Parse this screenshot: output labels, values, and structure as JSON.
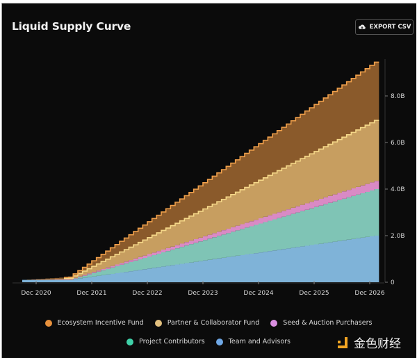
{
  "header": {
    "title": "Liquid Supply Curve",
    "export_label": "EXPORT CSV",
    "export_icon": "cloud-download-icon"
  },
  "watermark": {
    "text": "金色财经",
    "logo_color": "#f5a623"
  },
  "chart_data": {
    "type": "area",
    "stacked": true,
    "stepped": true,
    "title": "Liquid Supply Curve",
    "xlabel": "",
    "ylabel": "",
    "x_ticks": [
      "Dec 2020",
      "Dec 2021",
      "Dec 2022",
      "Dec 2023",
      "Dec 2024",
      "Dec 2025",
      "Dec 2026"
    ],
    "y_ticks": [
      "0",
      "2.0B",
      "4.0B",
      "6.0B",
      "8.0B"
    ],
    "y_tick_values": [
      0,
      2,
      4,
      6,
      8
    ],
    "ylim": [
      0,
      9.6
    ],
    "y_unit": "B",
    "y_axis_side": "right",
    "x_range": [
      "2020-09",
      "2027-01"
    ],
    "unlock_start": "2021-07",
    "legend_position": "bottom",
    "grid": false,
    "series": [
      {
        "name": "Team and Advisors",
        "color": "#7fb3d8",
        "legend_color": "#6fa8e6",
        "points": [
          [
            "2020-09",
            0.1
          ],
          [
            "2021-07",
            0.1
          ],
          [
            "2027-01",
            2.0
          ]
        ]
      },
      {
        "name": "Project Contributors",
        "color": "#7fc4b5",
        "legend_color": "#3fd1a8",
        "points": [
          [
            "2020-09",
            0.0
          ],
          [
            "2021-07",
            0.0
          ],
          [
            "2027-01",
            2.0
          ]
        ]
      },
      {
        "name": "Seed & Auction Purchasers",
        "color": "#d98ac5",
        "legend_color": "#d98ee0",
        "points": [
          [
            "2020-09",
            0.0
          ],
          [
            "2021-07",
            0.02
          ],
          [
            "2027-01",
            0.35
          ]
        ]
      },
      {
        "name": "Partner & Collaborator Fund",
        "color": "#c79e60",
        "legend_color": "#e2c07e",
        "points": [
          [
            "2020-09",
            0.0
          ],
          [
            "2021-07",
            0.05
          ],
          [
            "2027-01",
            2.6
          ]
        ]
      },
      {
        "name": "Ecosystem Incentive Fund",
        "color": "#8a5a2b",
        "legend_color": "#e8913c",
        "points": [
          [
            "2020-09",
            0.0
          ],
          [
            "2021-07",
            0.05
          ],
          [
            "2027-01",
            2.5
          ]
        ]
      }
    ],
    "line_colors": {
      "Ecosystem Incentive Fund": "#f0a04b",
      "Partner & Collaborator Fund": "#f5d889"
    }
  },
  "legend": {
    "row1": [
      {
        "label": "Ecosystem Incentive Fund",
        "color": "#e8913c"
      },
      {
        "label": "Partner & Collaborator Fund",
        "color": "#e2c07e"
      },
      {
        "label": "Seed & Auction Purchasers",
        "color": "#d98ee0"
      }
    ],
    "row2": [
      {
        "label": "Project Contributors",
        "color": "#3fd1a8"
      },
      {
        "label": "Team and Advisors",
        "color": "#6fa8e6"
      }
    ]
  }
}
